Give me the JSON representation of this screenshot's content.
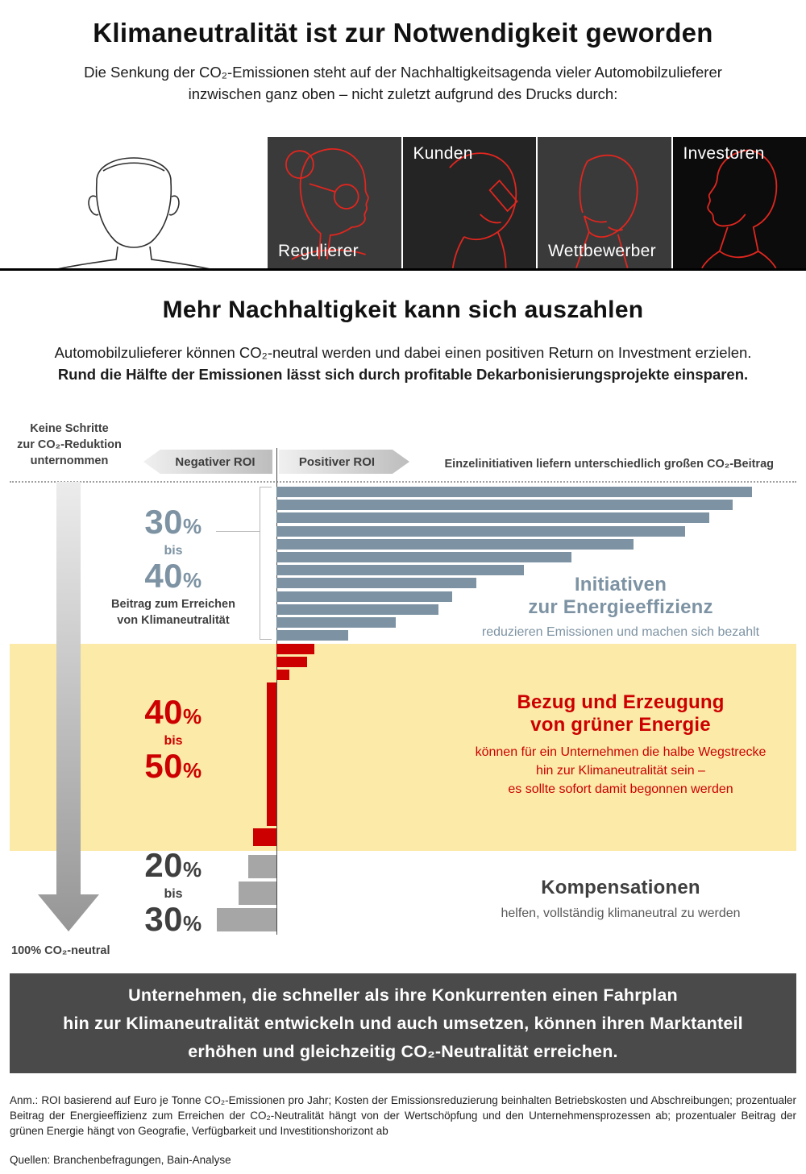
{
  "header": {
    "title": "Klimaneutralität ist zur Notwendigkeit geworden",
    "subtitle_line1": "Die Senkung der CO₂-Emissionen steht auf der Nachhaltigkeitsagenda vieler Automobilzulieferer",
    "subtitle_line2": "inzwischen ganz oben – nicht zuletzt aufgrund des Drucks durch:"
  },
  "pressure_groups": {
    "portrait_illustration": "front-facing-person-outline",
    "panels": [
      {
        "label": "Regulierer",
        "label_position": "bottom",
        "illustration": "profile-with-glasses-line-art"
      },
      {
        "label": "Kunden",
        "label_position": "top",
        "illustration": "person-on-phone-line-art"
      },
      {
        "label": "Wettbewerber",
        "label_position": "bottom",
        "illustration": "thinking-person-line-art"
      },
      {
        "label": "Investoren",
        "label_position": "top",
        "illustration": "side-profile-line-art"
      }
    ]
  },
  "section2": {
    "title": "Mehr Nachhaltigkeit kann sich auszahlen",
    "body_line1": "Automobilzulieferer können CO₂-neutral werden und dabei einen positiven Return on Investment erzielen.",
    "body_line2": "Rund die Hälfte der Emissionen lässt sich durch profitable Dekarbonisierungsprojekte einsparen."
  },
  "chart": {
    "no_action_line1": "Keine Schritte",
    "no_action_line2": "zur CO₂-Reduktion",
    "no_action_line3": "unternommen",
    "negative_roi": "Negativer ROI",
    "positive_roi": "Positiver ROI",
    "top_right_label": "Einzelinitiativen liefern unterschiedlich großen CO₂-Beitrag",
    "bottom_left_label": "100% CO₂-neutral",
    "groups": {
      "efficiency": {
        "from_value": "30",
        "unit": "%",
        "mid": "bis",
        "to_value": "40",
        "sublabel_line1": "Beitrag zum Erreichen",
        "sublabel_line2": "von Klimaneutralität",
        "heading_line1": "Initiativen",
        "heading_line2": "zur Energieeffizienz",
        "description": "reduzieren Emissionen und machen sich bezahlt"
      },
      "green_energy": {
        "from_value": "40",
        "unit": "%",
        "mid": "bis",
        "to_value": "50",
        "heading_line1": "Bezug und Erzeugung",
        "heading_line2": "von grüner Energie",
        "description_line1": "können für ein Unternehmen die halbe Wegstrecke",
        "description_line2": "hin zur Klimaneutralität sein –",
        "description_line3": "es sollte sofort damit begonnen werden"
      },
      "compensation": {
        "from_value": "20",
        "unit": "%",
        "mid": "bis",
        "to_value": "30",
        "heading": "Kompensationen",
        "description": "helfen, vollständig klimaneutral zu werden"
      }
    }
  },
  "chart_data": {
    "type": "bar",
    "orientation": "horizontal",
    "title": "Einzelinitiativen liefern unterschiedlich großen CO₂-Beitrag",
    "x_axis": "ROI je Initiative (schematisch); Balken rechts der Achse = positiver ROI, links = negativer ROI",
    "value_unit": "relativer ROI (0–100, geschätzt aus Balkenlängen)",
    "grid": false,
    "legend_position": "right",
    "series": [
      {
        "name": "Initiativen zur Energieeffizienz",
        "slug": "energy-efficiency-bar",
        "color": "#7d93a3",
        "co2_contribution": "30% bis 40%",
        "values": [
          100,
          96,
          91,
          86,
          75,
          62,
          52,
          42,
          37,
          34,
          25,
          15
        ]
      },
      {
        "name": "Bezug und Erzeugung von grüner Energie",
        "slug": "green-energy-bar",
        "color": "#cc0000",
        "co2_contribution": "40% bis 50%",
        "values": [
          8,
          6.5,
          2.7,
          -2,
          -5
        ]
      },
      {
        "name": "Kompensationen",
        "slug": "compensation-bar",
        "color": "#a6a6a6",
        "co2_contribution": "20% bis 30%",
        "values": [
          -6,
          -8,
          -12.5
        ]
      }
    ]
  },
  "callout": {
    "line1": "Unternehmen, die schneller als ihre Konkurrenten einen Fahrplan",
    "line2": "hin zur Klimaneutralität entwickeln und auch umsetzen, können ihren Marktanteil",
    "line3": "erhöhen und gleichzeitig CO₂-Neutralität erreichen."
  },
  "footnotes": {
    "note": "Anm.: ROI basierend auf Euro je Tonne CO₂-Emissionen pro Jahr; Kosten der Emissionsreduzierung beinhalten Betriebskosten und Abschreibungen; prozentualer Beitrag der Energieeffizienz zum Erreichen der CO₂-Neutralität hängt von der Wertschöpfung und den Unternehmensprozessen ab; prozentualer Beitrag der grünen Energie hängt von Geografie, Verfügbarkeit und Investitionshorizont ab",
    "sources": "Quellen: Branchenbefragungen, Bain-Analyse"
  },
  "colors": {
    "accent_red": "#cc0000",
    "steel_blue": "#7d93a3",
    "neutral_gray_bar": "#a6a6a6",
    "yellow_band": "#fceaa9",
    "callout_background": "#4a4a4a",
    "line_art_red": "#e0261f"
  }
}
